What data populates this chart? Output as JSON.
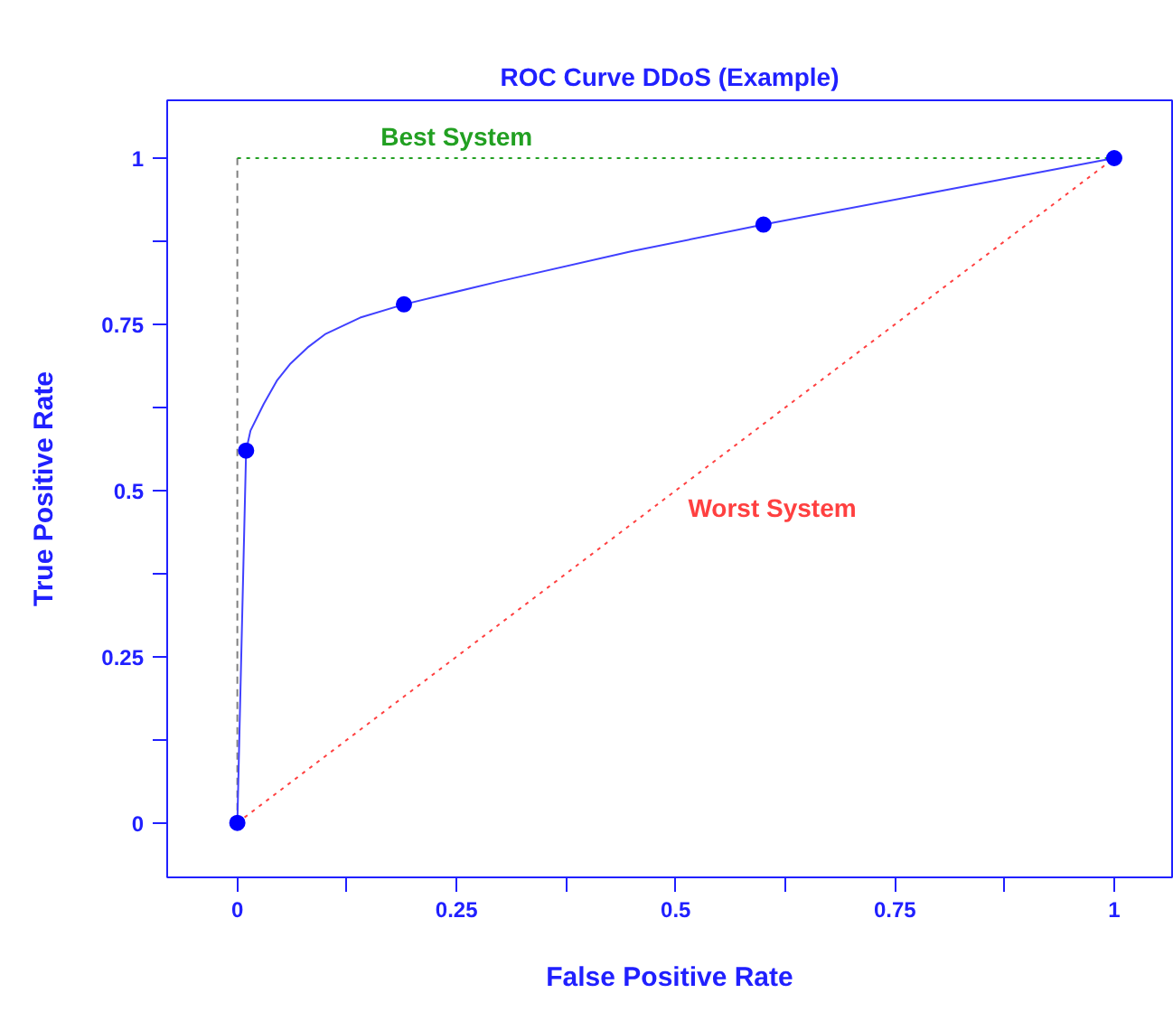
{
  "chart_data": {
    "type": "line",
    "title": "ROC Curve DDoS (Example)",
    "xlabel": "False Positive Rate",
    "ylabel": "True Positive Rate",
    "xlim": [
      -0.08,
      1.066
    ],
    "ylim": [
      -0.082,
      1.087
    ],
    "xticks": [
      0,
      {
        "value": 0.125,
        "label": null
      },
      0.25,
      {
        "value": 0.375,
        "label": null
      },
      0.5,
      {
        "value": 0.625,
        "label": null
      },
      0.75,
      {
        "value": 0.875,
        "label": null
      },
      1
    ],
    "yticks": [
      0,
      {
        "value": 0.125,
        "label": null
      },
      0.25,
      {
        "value": 0.375,
        "label": null
      },
      0.5,
      {
        "value": 0.625,
        "label": null
      },
      0.75,
      {
        "value": 0.875,
        "label": null
      },
      1
    ],
    "grid": false,
    "series": [
      {
        "color": "#808080",
        "line_style": "dashed",
        "marker": "none",
        "x": [
          0,
          0
        ],
        "values": [
          0,
          1
        ]
      },
      {
        "name": "Best System",
        "color": "#22a022",
        "line_style": "dotted",
        "marker": "none",
        "x": [
          0,
          1
        ],
        "values": [
          1,
          1
        ]
      },
      {
        "name": "Worst System",
        "color": "#ff4040",
        "line_style": "dotted",
        "marker": "none",
        "x": [
          0,
          1
        ],
        "values": [
          0,
          1
        ]
      },
      {
        "color": "#4040ff",
        "line_style": "solid",
        "marker": "none",
        "x": [
          0,
          0.01,
          0.015,
          0.03,
          0.045,
          0.06,
          0.08,
          0.1,
          0.14,
          0.19,
          0.3,
          0.45,
          0.6,
          0.8,
          1
        ],
        "values": [
          0,
          0.56,
          0.59,
          0.63,
          0.665,
          0.69,
          0.715,
          0.735,
          0.76,
          0.78,
          0.815,
          0.86,
          0.9,
          0.95,
          1
        ]
      },
      {
        "type": "scatter",
        "color": "#0000ff",
        "marker": "circle",
        "x": [
          0,
          0.01,
          0.19,
          0.6,
          1
        ],
        "values": [
          0,
          0.56,
          0.78,
          0.9,
          1
        ]
      }
    ]
  }
}
